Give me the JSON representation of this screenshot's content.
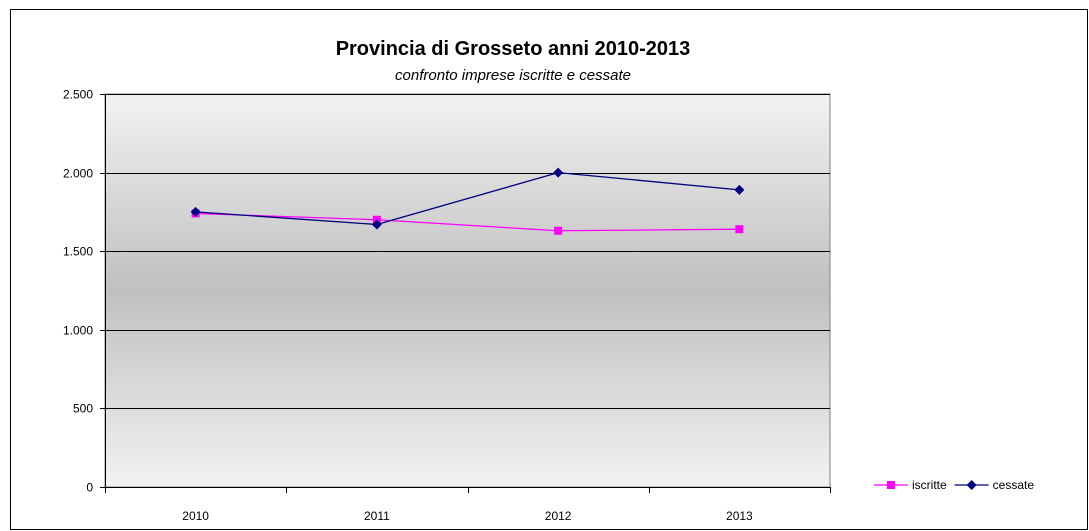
{
  "chart_data": {
    "type": "line",
    "title": "Provincia di Grosseto anni 2010-2013",
    "subtitle": "confronto  imprese iscritte e cessate",
    "xlabel": "",
    "ylabel": "",
    "categories": [
      "2010",
      "2011",
      "2012",
      "2013"
    ],
    "y_ticks": [
      {
        "value": 0,
        "label": "0"
      },
      {
        "value": 500,
        "label": "500"
      },
      {
        "value": 1000,
        "label": "1.000"
      },
      {
        "value": 1500,
        "label": "1.500"
      },
      {
        "value": 2000,
        "label": "2.000"
      },
      {
        "value": 2500,
        "label": "2.500"
      }
    ],
    "ylim": [
      0,
      2500
    ],
    "grid": true,
    "legend_position": "bottom-right",
    "series": [
      {
        "name": "iscritte",
        "color": "#ff00ff",
        "marker": "square",
        "values": [
          1740,
          1700,
          1630,
          1640
        ]
      },
      {
        "name": "cessate",
        "color": "#000080",
        "marker": "diamond",
        "values": [
          1750,
          1670,
          2000,
          1890
        ]
      }
    ]
  }
}
